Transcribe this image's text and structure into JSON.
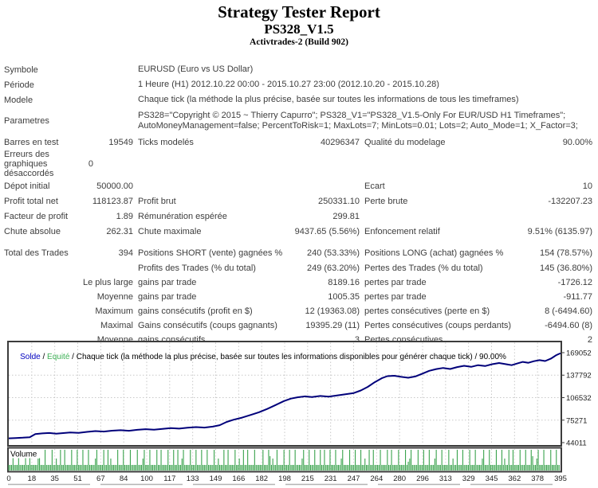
{
  "header": {
    "title": "Strategy Tester Report",
    "subtitle": "PS328_V1.5",
    "build": "Activtrades-2 (Build 902)"
  },
  "table": {
    "info_rows": [
      {
        "label": "Symbole",
        "value": "EURUSD (Euro vs US Dollar)"
      },
      {
        "label": "Période",
        "value": "1 Heure (H1) 2012.10.22 00:00 - 2015.10.27 23:00 (2012.10.20 - 2015.10.28)"
      },
      {
        "label": "Modele",
        "value": "Chaque tick (la méthode la plus précise, basée sur toutes les informations de tous les timeframes)"
      },
      {
        "label": "Parametres",
        "value": "PS328=\"Copyright © 2015 ~ Thierry Capurro\"; PS328_V1=\"PS328_V1.5-Only For EUR/USD H1 Timeframes\"; AutoMoneyManagement=false; PercentToRisk=1; MaxLots=7; MinLots=0.01; Lots=2; Auto_Mode=1; X_Factor=3;",
        "cls": "param"
      }
    ],
    "stat_rows": [
      {
        "l1": "Barres en test",
        "v1": "19549",
        "l2": "Ticks modelés",
        "v2": "40296347",
        "l3": "Qualité du modelage",
        "v3": "90.00%"
      },
      {
        "l1": "Erreurs des graphiques désaccordés",
        "v1": "0",
        "l2": "",
        "v2": "",
        "l3": "",
        "v3": "",
        "cls": "tall narrow"
      },
      {
        "l1": "Dépot initial",
        "v1": "50000.00",
        "l2": "",
        "v2": "",
        "l3": "Ecart",
        "v3": "10"
      },
      {
        "l1": "Profit total net",
        "v1": "118123.87",
        "l2": "Profit brut",
        "v2": "250331.10",
        "l3": "Perte brute",
        "v3": "-132207.23"
      },
      {
        "l1": "Facteur de profit",
        "v1": "1.89",
        "l2": "Rémunération espérée",
        "v2": "299.81",
        "l3": "",
        "v3": ""
      },
      {
        "l1": "Chute absolue",
        "v1": "262.31",
        "l2": "Chute maximale",
        "v2": "9437.65 (5.56%)",
        "l3": "Enfoncement relatif",
        "v3": "9.51% (6135.97)"
      },
      {
        "gap": 8
      },
      {
        "l1": "Total des Trades",
        "v1": "394",
        "l2": "Positions SHORT (vente) gagnées %",
        "v2": "240 (53.33%)",
        "l3": "Positions LONG (achat) gagnées %",
        "v3": "154 (78.57%)"
      },
      {
        "l1": "",
        "v1": "",
        "l2": "Profits des Trades (% du total)",
        "v2": "249 (63.20%)",
        "l3": "Pertes des Trades (% du total)",
        "v3": "145 (36.80%)"
      },
      {
        "l1": "",
        "v1": "Le plus large",
        "l2": "gains par trade",
        "v2": "8189.16",
        "l3": "pertes par trade",
        "v3": "-1726.12",
        "cls": "tight"
      },
      {
        "l1": "",
        "v1": "Moyenne",
        "l2": "gains par trade",
        "v2": "1005.35",
        "l3": "pertes par trade",
        "v3": "-911.77",
        "cls": "tight"
      },
      {
        "l1": "",
        "v1": "Maximum",
        "l2": "gains consécutifs (profit en $)",
        "v2": "12 (19363.08)",
        "l3": "pertes consécutives (perte en $)",
        "v3": "8 (-6494.60)",
        "cls": "tight"
      },
      {
        "l1": "",
        "v1": "Maximal",
        "l2": "Gains consécutifs (coups gagnants)",
        "v2": "19395.29 (11)",
        "l3": "Pertes consécutives (coups perdants)",
        "v3": "-6494.60 (8)",
        "cls": "tight"
      },
      {
        "l1": "",
        "v1": "Moyenne",
        "l2": "gains consécutifs",
        "v2": "3",
        "l3": "Pertes consécutives",
        "v3": "2",
        "cls": "tight"
      }
    ]
  },
  "chart_data": [
    {
      "type": "line",
      "title": "Solde / Equité / Chaque tick (la méthode la plus précise, basée sur toutes les informations disponibles pour générer chaque tick) / 90.00%",
      "legend_parts": {
        "solde": "Solde",
        "sep": " / ",
        "equite": "Equité",
        "rest": " / Chaque tick (la méthode la plus précise, basée sur toutes les informations disponibles pour générer chaque tick) / 90.00%"
      },
      "colors": {
        "solde_label": "#0000c0",
        "equite_label": "#3cb054",
        "line": "#00007a",
        "grid": "#c8c8c8",
        "frame": "#3c3c3c"
      },
      "xlabel": "",
      "ylabel": "",
      "x_range": [
        0,
        395
      ],
      "ylim": [
        44011,
        169052
      ],
      "grid": true,
      "yticks": [
        {
          "label": "169052",
          "value": 169052
        },
        {
          "label": "137792",
          "value": 137792
        },
        {
          "label": "106532",
          "value": 106532
        },
        {
          "label": "75271",
          "value": 75271
        },
        {
          "label": "44011",
          "value": 44011
        }
      ],
      "xticks": [
        "0",
        "18",
        "35",
        "51",
        "67",
        "84",
        "100",
        "117",
        "133",
        "149",
        "166",
        "182",
        "198",
        "215",
        "231",
        "247",
        "264",
        "280",
        "296",
        "313",
        "329",
        "345",
        "362",
        "378",
        "395"
      ],
      "series": [
        {
          "name": "Solde",
          "points": [
            [
              0,
              50000
            ],
            [
              5,
              50400
            ],
            [
              10,
              50900
            ],
            [
              15,
              51500
            ],
            [
              19,
              55800
            ],
            [
              24,
              56900
            ],
            [
              29,
              57400
            ],
            [
              34,
              56500
            ],
            [
              39,
              57300
            ],
            [
              44,
              58200
            ],
            [
              50,
              57600
            ],
            [
              56,
              58900
            ],
            [
              62,
              60100
            ],
            [
              68,
              59400
            ],
            [
              74,
              60600
            ],
            [
              80,
              61300
            ],
            [
              86,
              60500
            ],
            [
              92,
              61800
            ],
            [
              98,
              62700
            ],
            [
              104,
              62000
            ],
            [
              110,
              63200
            ],
            [
              116,
              64300
            ],
            [
              122,
              63500
            ],
            [
              128,
              64700
            ],
            [
              134,
              65600
            ],
            [
              140,
              64900
            ],
            [
              146,
              66300
            ],
            [
              151,
              68200
            ],
            [
              156,
              72800
            ],
            [
              161,
              75900
            ],
            [
              167,
              78800
            ],
            [
              173,
              82400
            ],
            [
              179,
              86200
            ],
            [
              185,
              90800
            ],
            [
              191,
              96200
            ],
            [
              197,
              101800
            ],
            [
              202,
              105200
            ],
            [
              207,
              107100
            ],
            [
              212,
              108300
            ],
            [
              217,
              107300
            ],
            [
              223,
              108900
            ],
            [
              229,
              107900
            ],
            [
              235,
              109600
            ],
            [
              241,
              111200
            ],
            [
              247,
              113000
            ],
            [
              252,
              116500
            ],
            [
              257,
              121500
            ],
            [
              262,
              128000
            ],
            [
              267,
              133500
            ],
            [
              271,
              136400
            ],
            [
              276,
              137000
            ],
            [
              281,
              135400
            ],
            [
              286,
              134200
            ],
            [
              291,
              136000
            ],
            [
              296,
              139800
            ],
            [
              301,
              143800
            ],
            [
              306,
              146300
            ],
            [
              311,
              147800
            ],
            [
              316,
              146400
            ],
            [
              321,
              149000
            ],
            [
              326,
              150800
            ],
            [
              331,
              149400
            ],
            [
              336,
              151700
            ],
            [
              341,
              150500
            ],
            [
              346,
              153000
            ],
            [
              351,
              154700
            ],
            [
              356,
              153000
            ],
            [
              360,
              151700
            ],
            [
              364,
              154000
            ],
            [
              368,
              156200
            ],
            [
              372,
              155000
            ],
            [
              376,
              157200
            ],
            [
              380,
              158700
            ],
            [
              384,
              157400
            ],
            [
              388,
              160600
            ],
            [
              390,
              163100
            ],
            [
              392,
              165600
            ],
            [
              394,
              167400
            ],
            [
              395,
              168124
            ]
          ]
        }
      ]
    },
    {
      "type": "bar",
      "title": "Volume",
      "color": "#3aa34d",
      "max_lots": 7,
      "bars_encoded": "22272227222272272222247222722227224227227222272227222722272222472222722724222272227222272222722247222722227227222272227227224722227222722272227222272242227227222272242272272222722222722275242272222722272227222247222722272227227222722272224722227222722272242272272222722227227222272222723472222722272227222472227222272242272227222272227222247222722227222724227227222272227222752247222722227222722272247222722272227222",
      "height_map": {
        "2": 7,
        "3": 11,
        "4": 15,
        "5": 18,
        "7": 26
      }
    }
  ]
}
